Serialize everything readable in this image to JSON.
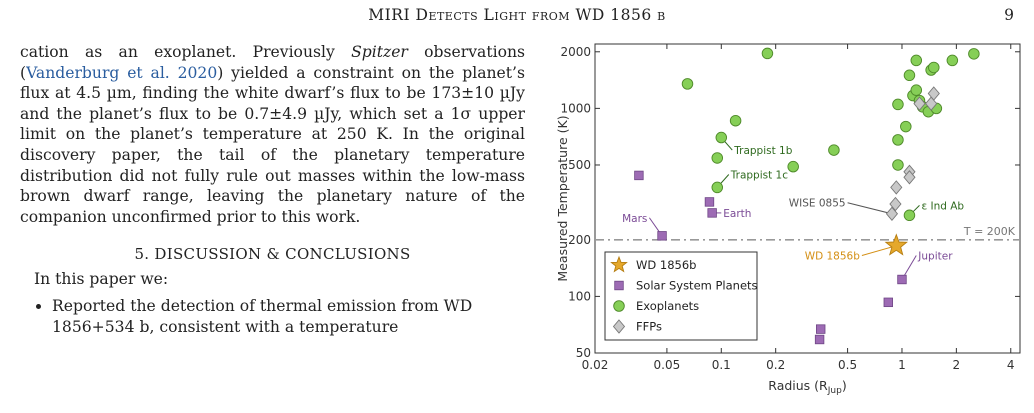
{
  "header": {
    "running_title": "MIRI Detects Light from WD 1856 b",
    "page_number": "9"
  },
  "body": {
    "para1_a": "cation as an exoplanet. Previously ",
    "para1_italic": "Spitzer",
    "para1_b": " observations (",
    "para1_cite": "Vanderburg et al. 2020",
    "para1_c": ") yielded a constraint on the planet’s flux at 4.5 µm, finding the white dwarf’s flux to be 173±10 µJy and the planet’s flux to be 0.7±4.9 µJy, which set a 1σ upper limit on the planet’s temperature at 250 K. In the original discovery paper, the tail of the planetary temperature distribution did not fully rule out masses within the low-mass brown dwarf range, leaving the planetary nature of the companion unconfirmed prior to this work.",
    "section_title": "5. DISCUSSION & CONCLUSIONS",
    "intro": "In this paper we:",
    "bullet1": "Reported the detection of thermal emission from WD 1856+534 b, consistent with a temperature"
  },
  "chart_data": {
    "type": "scatter",
    "xlabel": "Radius (R",
    "xlabel_sub": "Jup",
    "xlabel_end": ")",
    "ylabel": "Measured Temperature (K)",
    "xscale": "log",
    "yscale": "log",
    "xlim": [
      0.02,
      4.5
    ],
    "ylim": [
      50,
      2200
    ],
    "x_ticks": [
      0.02,
      0.05,
      0.1,
      0.2,
      0.5,
      1,
      2,
      4
    ],
    "x_tick_labels": [
      "0.02",
      "0.05",
      "0.1",
      "0.2",
      "0.5",
      "1",
      "2",
      "4"
    ],
    "y_ticks": [
      50,
      100,
      200,
      500,
      1000,
      2000
    ],
    "y_tick_labels": [
      "50",
      "100",
      "200",
      "500",
      "1000",
      "2000"
    ],
    "threshold": {
      "y": 200,
      "label": "T = 200K"
    },
    "legend": {
      "placement": "lower-left",
      "entries": [
        "WD 1856b",
        "Solar System Planets",
        "Exoplanets",
        "FFPs"
      ]
    },
    "colors": {
      "star": "#e5a82b",
      "solar": "#9d6bb4",
      "exo": "#86cf57",
      "ffp": "#c8c8c8",
      "threshold": "#999999"
    },
    "series": {
      "wd1856b": [
        {
          "x": 0.93,
          "y": 186
        }
      ],
      "solar_system": [
        {
          "x": 0.035,
          "y": 440
        },
        {
          "x": 0.047,
          "y": 210
        },
        {
          "x": 0.086,
          "y": 318
        },
        {
          "x": 0.089,
          "y": 278
        },
        {
          "x": 0.35,
          "y": 59
        },
        {
          "x": 0.355,
          "y": 67
        },
        {
          "x": 0.84,
          "y": 93
        },
        {
          "x": 1.0,
          "y": 123
        }
      ],
      "exoplanets": [
        {
          "x": 0.065,
          "y": 1350
        },
        {
          "x": 0.1,
          "y": 700
        },
        {
          "x": 0.095,
          "y": 545
        },
        {
          "x": 0.095,
          "y": 380
        },
        {
          "x": 0.12,
          "y": 860
        },
        {
          "x": 0.18,
          "y": 1960
        },
        {
          "x": 0.25,
          "y": 490
        },
        {
          "x": 0.42,
          "y": 600
        },
        {
          "x": 0.95,
          "y": 1050
        },
        {
          "x": 0.95,
          "y": 680
        },
        {
          "x": 0.95,
          "y": 500
        },
        {
          "x": 1.05,
          "y": 800
        },
        {
          "x": 1.1,
          "y": 1500
        },
        {
          "x": 1.15,
          "y": 1170
        },
        {
          "x": 1.2,
          "y": 1250
        },
        {
          "x": 1.2,
          "y": 1800
        },
        {
          "x": 1.25,
          "y": 1100
        },
        {
          "x": 1.3,
          "y": 1020
        },
        {
          "x": 1.4,
          "y": 960
        },
        {
          "x": 1.45,
          "y": 1600
        },
        {
          "x": 1.5,
          "y": 1650
        },
        {
          "x": 1.55,
          "y": 1000
        },
        {
          "x": 1.9,
          "y": 1800
        },
        {
          "x": 2.5,
          "y": 1950
        },
        {
          "x": 1.1,
          "y": 270
        }
      ],
      "ffps": [
        {
          "x": 0.88,
          "y": 275
        },
        {
          "x": 0.92,
          "y": 310
        },
        {
          "x": 0.93,
          "y": 380
        },
        {
          "x": 1.1,
          "y": 460
        },
        {
          "x": 1.1,
          "y": 430
        },
        {
          "x": 1.25,
          "y": 1060
        },
        {
          "x": 1.45,
          "y": 1060
        },
        {
          "x": 1.5,
          "y": 1200
        }
      ]
    },
    "annotations": [
      {
        "text": "Trappist 1b",
        "x": 0.1,
        "y": 700,
        "tx": 0.115,
        "ty": 600,
        "color": "#2f6a1f"
      },
      {
        "text": "Trappist 1c",
        "x": 0.095,
        "y": 380,
        "tx": 0.11,
        "ty": 445,
        "color": "#2f6a1f"
      },
      {
        "text": "Mars",
        "x": 0.047,
        "y": 210,
        "tx": 0.04,
        "ty": 262,
        "color": "#7b4b96"
      },
      {
        "text": "Earth",
        "x": 0.089,
        "y": 278,
        "tx": 0.1,
        "ty": 278,
        "color": "#7b4b96"
      },
      {
        "text": "WISE 0855",
        "x": 0.88,
        "y": 275,
        "tx": 0.5,
        "ty": 315,
        "color": "#555555"
      },
      {
        "text": "ε Ind Ab",
        "x": 1.1,
        "y": 270,
        "tx": 1.25,
        "ty": 305,
        "color": "#2f6a1f"
      },
      {
        "text": "WD 1856b",
        "x": 0.93,
        "y": 186,
        "tx": 0.6,
        "ty": 165,
        "color": "#d48f14"
      },
      {
        "text": "Jupiter",
        "x": 1.0,
        "y": 123,
        "tx": 1.2,
        "ty": 165,
        "color": "#7b4b96"
      }
    ]
  }
}
